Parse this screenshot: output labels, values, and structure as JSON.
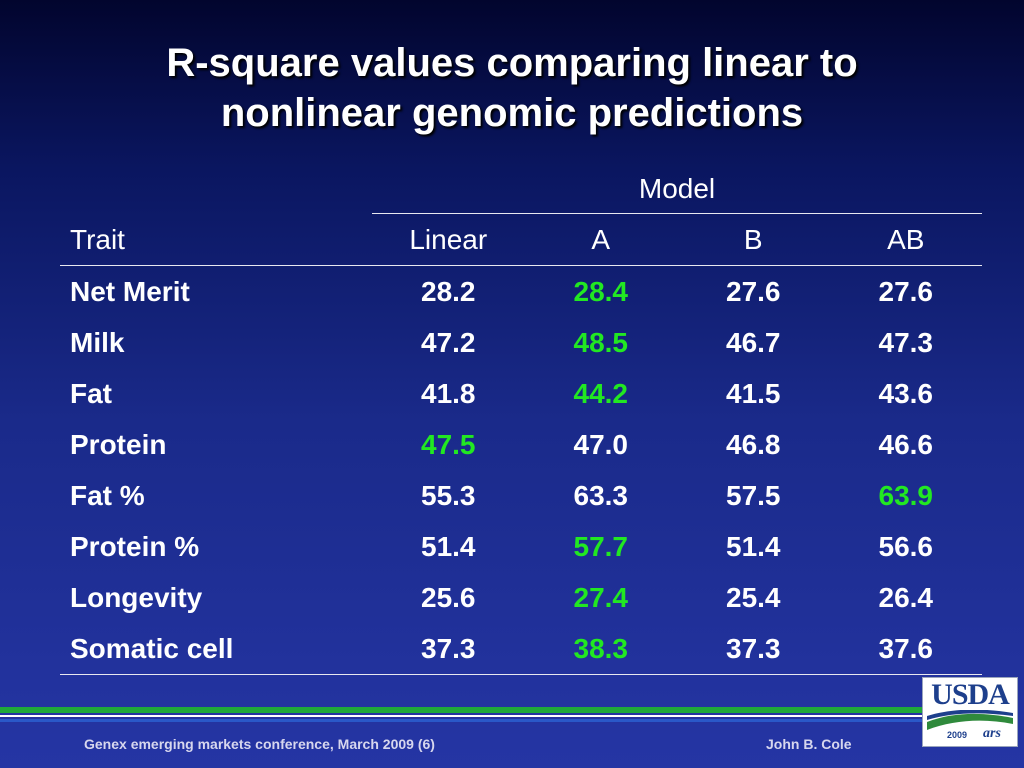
{
  "title_line1": "R-square values comparing linear to",
  "title_line2": "nonlinear genomic predictions",
  "table": {
    "group_header": "Model",
    "headers": [
      "Trait",
      "Linear",
      "A",
      "B",
      "AB"
    ],
    "rows": [
      {
        "trait": "Net Merit",
        "values": [
          "28.2",
          "28.4",
          "27.6",
          "27.6"
        ],
        "highlight": 1
      },
      {
        "trait": "Milk",
        "values": [
          "47.2",
          "48.5",
          "46.7",
          "47.3"
        ],
        "highlight": 1
      },
      {
        "trait": "Fat",
        "values": [
          "41.8",
          "44.2",
          "41.5",
          "43.6"
        ],
        "highlight": 1
      },
      {
        "trait": "Protein",
        "values": [
          "47.5",
          "47.0",
          "46.8",
          "46.6"
        ],
        "highlight": 0
      },
      {
        "trait": "Fat %",
        "values": [
          "55.3",
          "63.3",
          "57.5",
          "63.9"
        ],
        "highlight": 3
      },
      {
        "trait": "Protein %",
        "values": [
          "51.4",
          "57.7",
          "51.4",
          "56.6"
        ],
        "highlight": 1
      },
      {
        "trait": "Longevity",
        "values": [
          "25.6",
          "27.4",
          "25.4",
          "26.4"
        ],
        "highlight": 1
      },
      {
        "trait": "Somatic cell",
        "values": [
          "37.3",
          "38.3",
          "37.3",
          "37.6"
        ],
        "highlight": 1
      }
    ]
  },
  "footer": {
    "left": "Genex emerging markets conference, March 2009 (6)",
    "right": "John B. Cole"
  },
  "logo": {
    "text": "USDA",
    "year": "2009",
    "ars": "ars"
  },
  "colors": {
    "highlight": "#22e822",
    "text": "#ffffff"
  }
}
